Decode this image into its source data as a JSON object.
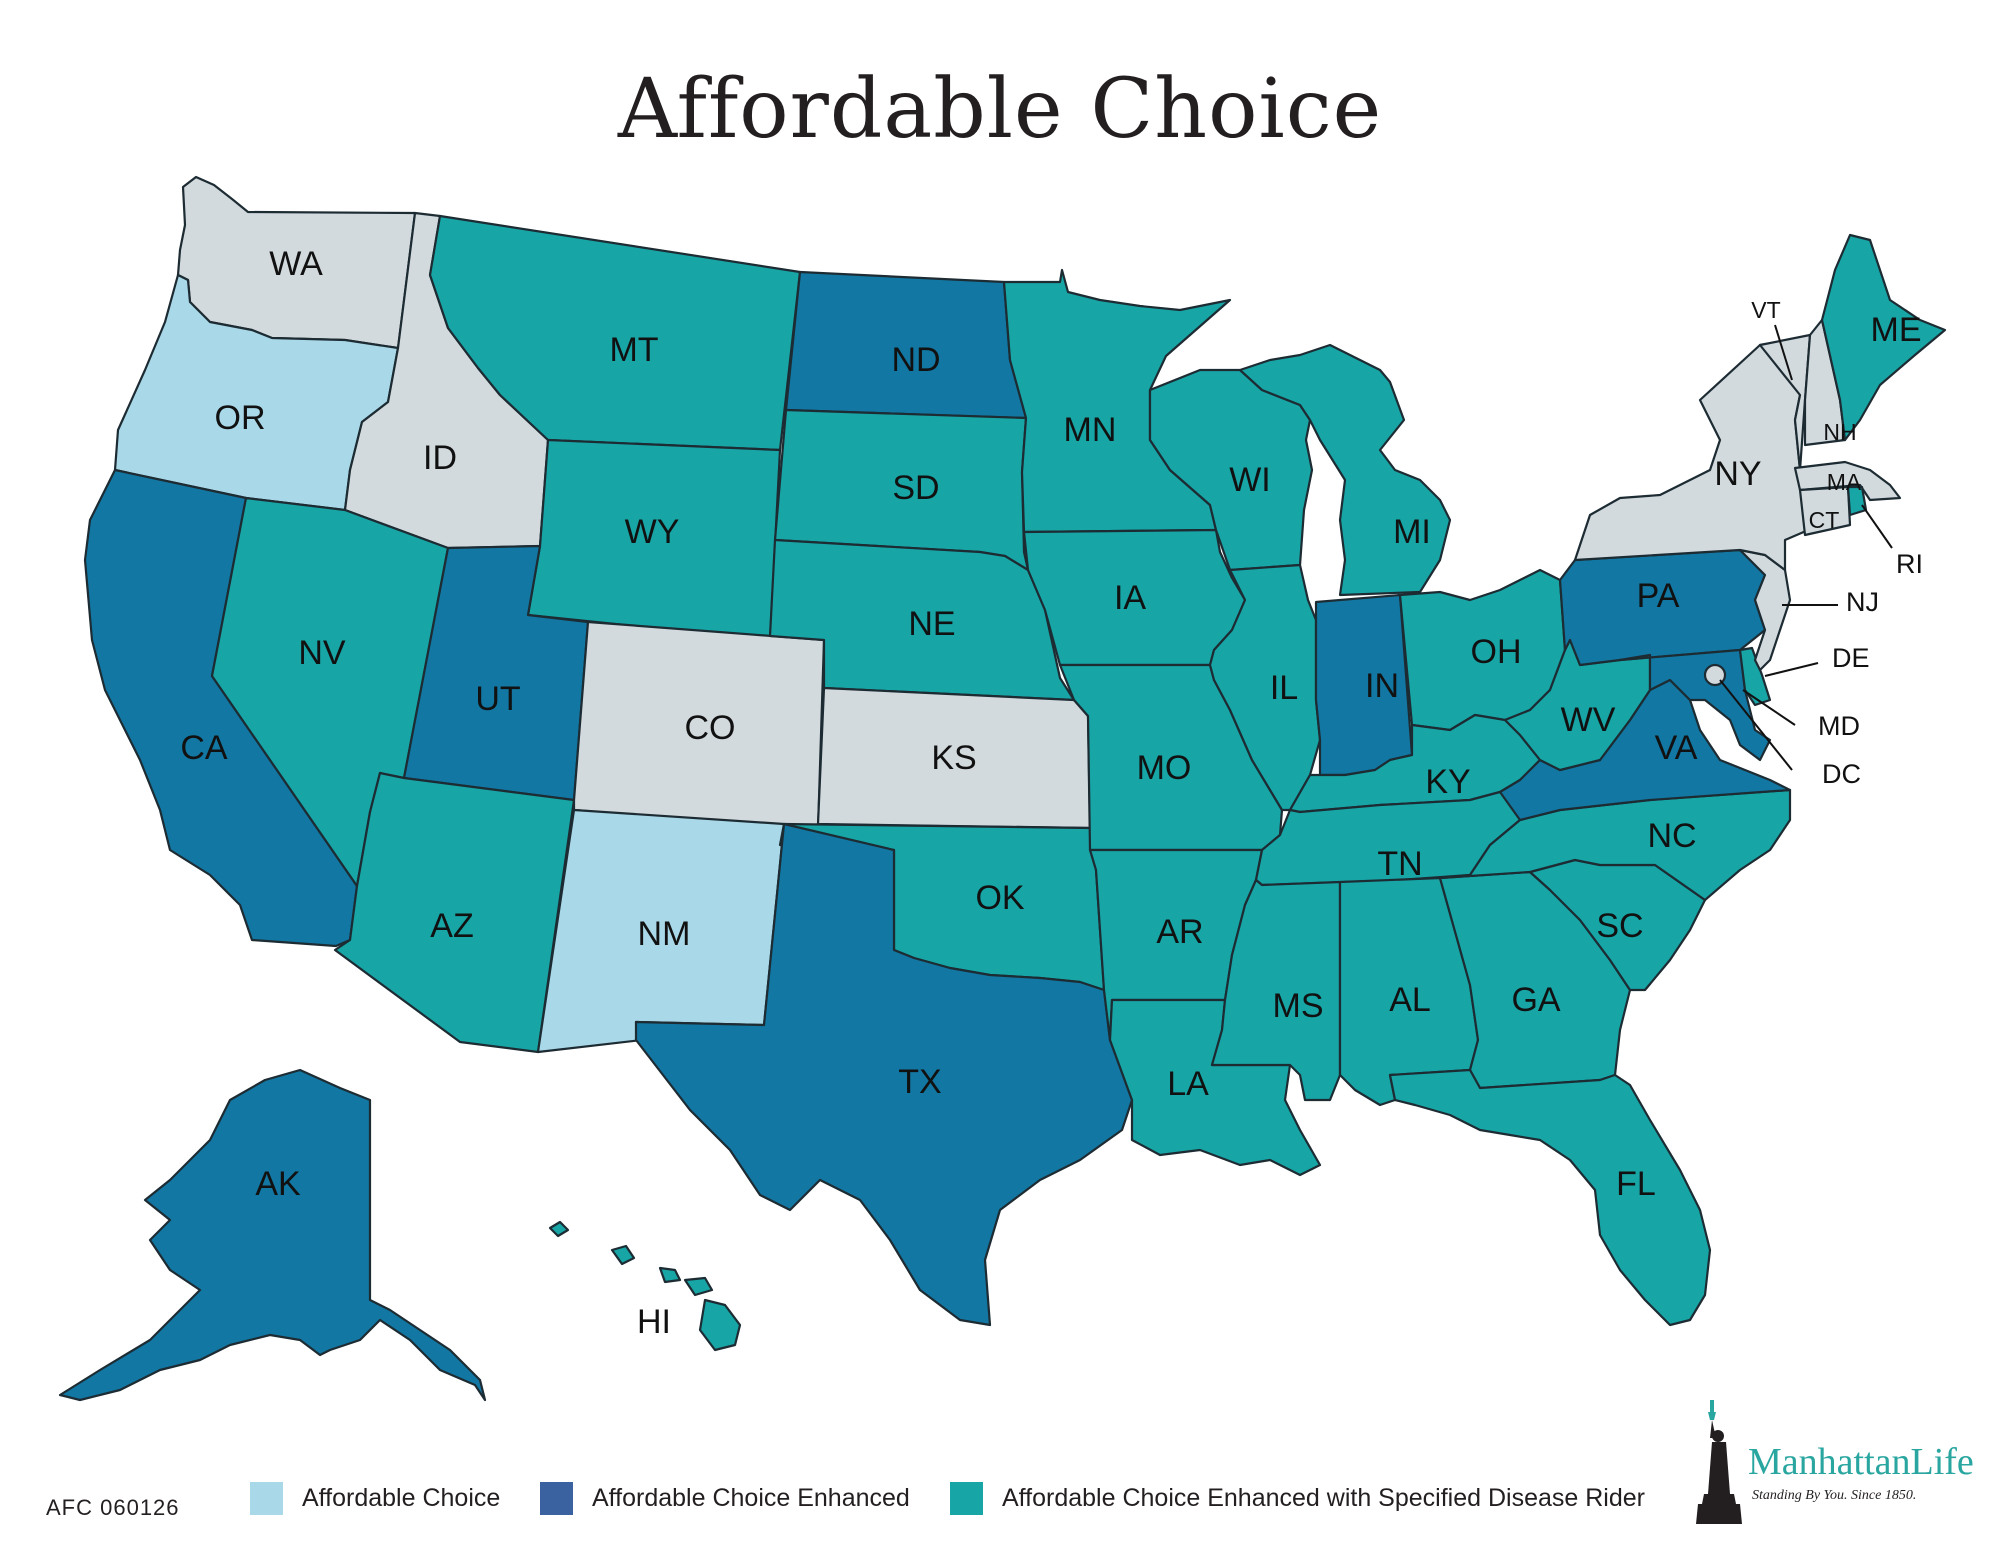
{
  "title": "Affordable Choice",
  "form_code": "AFC 060126",
  "colors": {
    "affordable_choice": "#a9d8e8",
    "enhanced": "#1277a2",
    "enhanced_rider": "#17a5a6",
    "not_available": "#d2dade",
    "legend_enhanced_swatch": "#3a62a0"
  },
  "legend": [
    {
      "label": "Affordable Choice",
      "color": "#a9d8e8"
    },
    {
      "label": "Affordable Choice Enhanced",
      "color": "#3a62a0"
    },
    {
      "label": "Affordable Choice Enhanced with Specified Disease Rider",
      "color": "#17a5a6"
    }
  ],
  "states": {
    "WA": "not_available",
    "OR": "affordable_choice",
    "CA": "enhanced",
    "ID": "not_available",
    "NV": "enhanced_rider",
    "MT": "enhanced_rider",
    "WY": "enhanced_rider",
    "UT": "enhanced",
    "AZ": "enhanced_rider",
    "CO": "not_available",
    "NM": "affordable_choice",
    "ND": "enhanced",
    "SD": "enhanced_rider",
    "NE": "enhanced_rider",
    "KS": "not_available",
    "OK": "enhanced_rider",
    "TX": "enhanced",
    "MN": "enhanced_rider",
    "IA": "enhanced_rider",
    "MO": "enhanced_rider",
    "AR": "enhanced_rider",
    "LA": "enhanced_rider",
    "WI": "enhanced_rider",
    "IL": "enhanced_rider",
    "MI": "enhanced_rider",
    "IN": "enhanced",
    "OH": "enhanced_rider",
    "KY": "enhanced_rider",
    "TN": "enhanced_rider",
    "MS": "enhanced_rider",
    "AL": "enhanced_rider",
    "GA": "enhanced_rider",
    "FL": "enhanced_rider",
    "SC": "enhanced_rider",
    "NC": "enhanced_rider",
    "VA": "enhanced",
    "WV": "enhanced_rider",
    "PA": "enhanced",
    "NY": "not_available",
    "VT": "not_available",
    "NH": "not_available",
    "ME": "enhanced_rider",
    "MA": "not_available",
    "CT": "not_available",
    "RI": "enhanced_rider",
    "NJ": "not_available",
    "DE": "enhanced_rider",
    "MD": "enhanced",
    "DC": "not_available",
    "AK": "enhanced",
    "HI": "enhanced_rider"
  },
  "labels": {
    "WA": "WA",
    "OR": "OR",
    "CA": "CA",
    "ID": "ID",
    "NV": "NV",
    "MT": "MT",
    "WY": "WY",
    "UT": "UT",
    "AZ": "AZ",
    "CO": "CO",
    "NM": "NM",
    "ND": "ND",
    "SD": "SD",
    "NE": "NE",
    "KS": "KS",
    "OK": "OK",
    "TX": "TX",
    "MN": "MN",
    "IA": "IA",
    "MO": "MO",
    "AR": "AR",
    "LA": "LA",
    "WI": "WI",
    "IL": "IL",
    "MI": "MI",
    "IN": "IN",
    "OH": "OH",
    "KY": "KY",
    "TN": "TN",
    "MS": "MS",
    "AL": "AL",
    "GA": "GA",
    "FL": "FL",
    "SC": "SC",
    "NC": "NC",
    "VA": "VA",
    "WV": "WV",
    "PA": "PA",
    "NY": "NY",
    "VT": "VT",
    "NH": "NH",
    "ME": "ME",
    "MA": "MA",
    "CT": "CT",
    "RI": "RI",
    "NJ": "NJ",
    "DE": "DE",
    "MD": "MD",
    "DC": "DC",
    "AK": "AK",
    "HI": "HI"
  },
  "logo": {
    "name": "ManhattanLife",
    "tagline": "Standing By You. Since 1850.",
    "icon": "statue-of-liberty-icon"
  }
}
